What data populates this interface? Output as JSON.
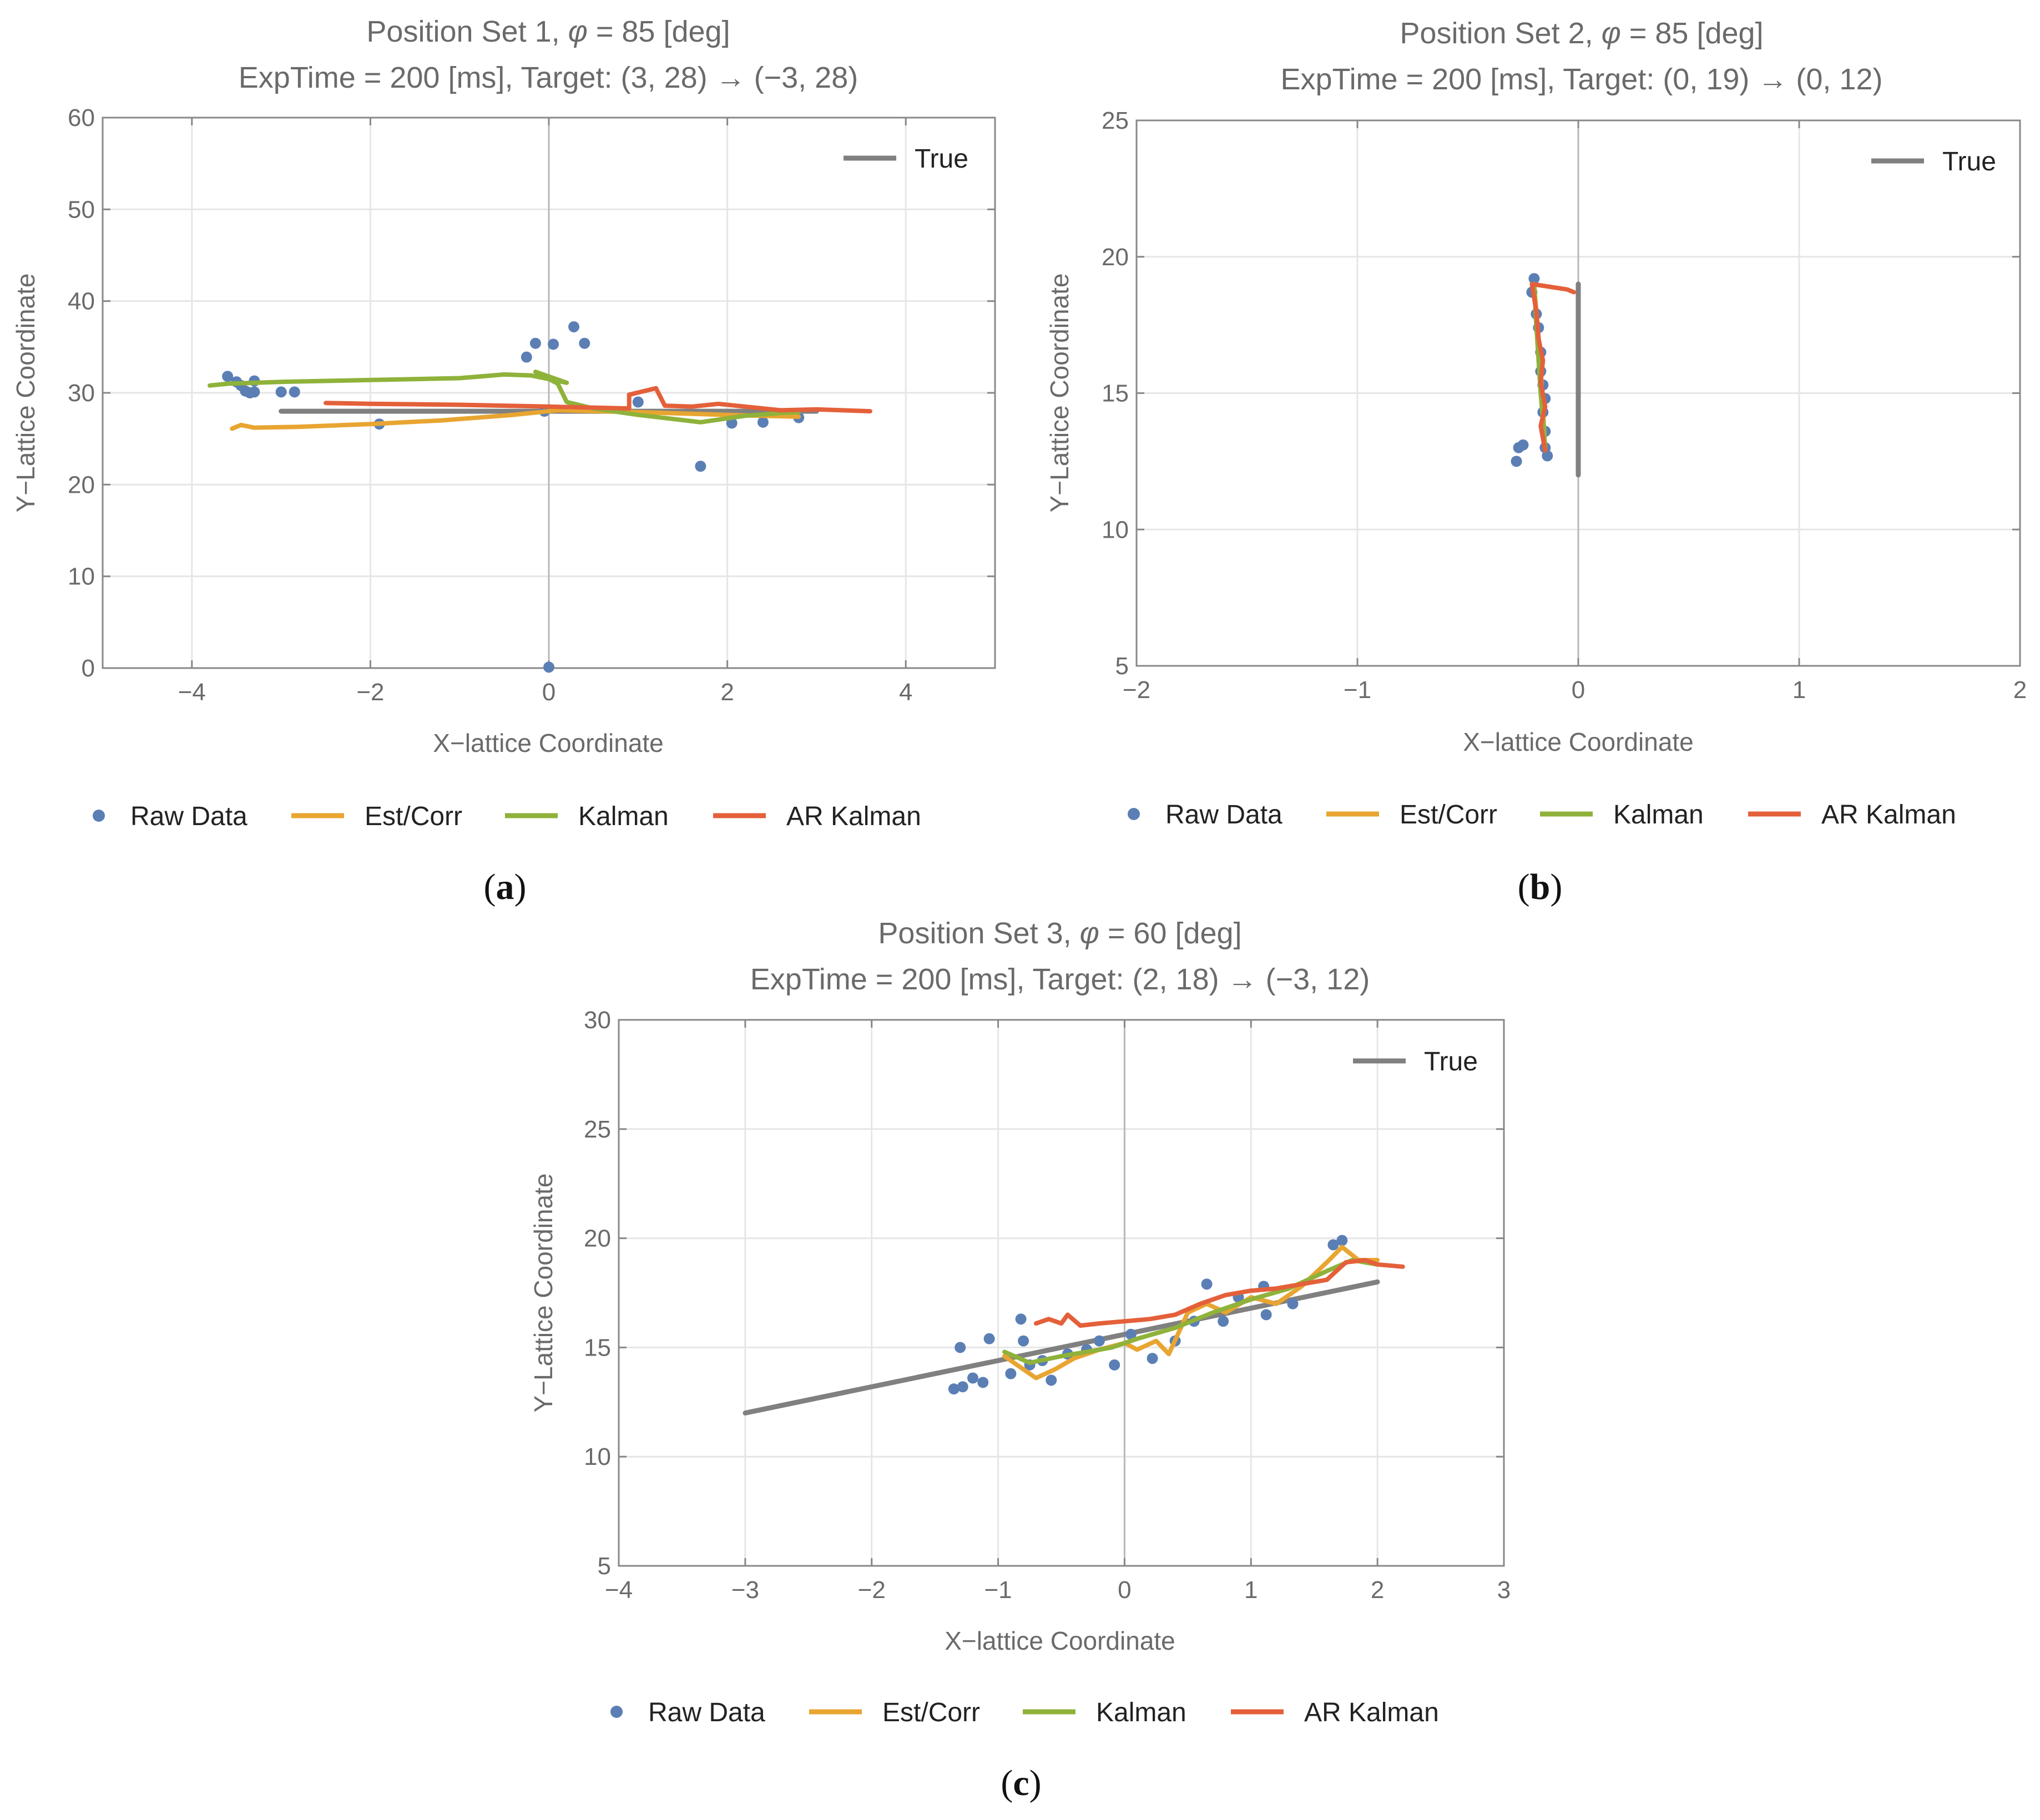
{
  "colors": {
    "raw": "#5b7fb5",
    "est": "#e8a531",
    "kalman": "#8fb23a",
    "ar": "#e4603a",
    "true": "#808080",
    "axis": "#888888",
    "grid": "#e6e6e6"
  },
  "legend_labels": [
    "Raw Data",
    "Est/Corr",
    "Kalman",
    "AR Kalman"
  ],
  "chart_data": [
    {
      "type": "scatter",
      "panel": "(a)",
      "title_line1_pre": "Position Set 1, ",
      "title_phi": "φ",
      "title_line1_post": " = 85 [deg]",
      "title_line2": "ExpTime = 200 [ms], Target: (3, 28) → (−3, 28)",
      "xlabel": "X−lattice Coordinate",
      "ylabel": "Y−Lattice Coordinate",
      "xlim": [
        -5,
        5
      ],
      "ylim": [
        0,
        60
      ],
      "xticks": [
        -4,
        -2,
        0,
        2,
        4
      ],
      "xtick_labels": [
        "−4",
        "−2",
        "0",
        "2",
        "4"
      ],
      "yticks": [
        0,
        10,
        20,
        30,
        40,
        50,
        60
      ],
      "ytick_labels": [
        "0",
        "10",
        "20",
        "30",
        "40",
        "50",
        "60"
      ],
      "inset_legend": "True",
      "series": [
        {
          "name": "True",
          "key": "true",
          "kind": "line",
          "points": [
            [
              -3,
              28
            ],
            [
              3,
              28
            ]
          ]
        },
        {
          "name": "Raw Data",
          "key": "raw",
          "kind": "points",
          "points": [
            [
              -3.6,
              31.8
            ],
            [
              -3.5,
              31.2
            ],
            [
              -3.45,
              30.8
            ],
            [
              -3.4,
              30.2
            ],
            [
              -3.35,
              30.0
            ],
            [
              -3.3,
              31.3
            ],
            [
              -3.3,
              30.1
            ],
            [
              -3.0,
              30.1
            ],
            [
              -2.85,
              30.1
            ],
            [
              -1.9,
              26.6
            ],
            [
              -0.25,
              33.9
            ],
            [
              -0.15,
              35.4
            ],
            [
              -0.05,
              28.0
            ],
            [
              0.0,
              0.1
            ],
            [
              0.05,
              35.3
            ],
            [
              0.28,
              37.2
            ],
            [
              0.4,
              35.4
            ],
            [
              1.0,
              29.0
            ],
            [
              1.7,
              22.0
            ],
            [
              2.05,
              26.7
            ],
            [
              2.4,
              26.8
            ],
            [
              2.8,
              27.3
            ]
          ]
        },
        {
          "name": "Est/Corr",
          "key": "est",
          "kind": "line",
          "points": [
            [
              -3.55,
              26.1
            ],
            [
              -3.45,
              26.5
            ],
            [
              -3.3,
              26.2
            ],
            [
              -2.8,
              26.3
            ],
            [
              -2.0,
              26.6
            ],
            [
              -1.2,
              27.0
            ],
            [
              -0.4,
              27.6
            ],
            [
              0.1,
              28.1
            ],
            [
              1.0,
              27.9
            ],
            [
              2.0,
              27.6
            ],
            [
              2.8,
              27.4
            ]
          ]
        },
        {
          "name": "Kalman",
          "key": "kalman",
          "kind": "line",
          "points": [
            [
              -3.8,
              30.8
            ],
            [
              -3.6,
              31.0
            ],
            [
              -3.0,
              31.2
            ],
            [
              -1.0,
              31.6
            ],
            [
              -0.5,
              32.0
            ],
            [
              -0.2,
              31.9
            ],
            [
              0.0,
              31.5
            ],
            [
              0.2,
              31.1
            ],
            [
              -0.15,
              32.3
            ],
            [
              0.1,
              31.0
            ],
            [
              0.2,
              29.0
            ],
            [
              0.5,
              28.3
            ],
            [
              1.0,
              27.6
            ],
            [
              1.7,
              26.8
            ],
            [
              2.2,
              27.5
            ],
            [
              2.6,
              27.8
            ],
            [
              2.8,
              27.9
            ]
          ]
        },
        {
          "name": "AR Kalman",
          "key": "ar",
          "kind": "line",
          "points": [
            [
              -2.5,
              28.9
            ],
            [
              -2.0,
              28.8
            ],
            [
              -1.0,
              28.7
            ],
            [
              0.0,
              28.5
            ],
            [
              0.9,
              28.3
            ],
            [
              0.9,
              29.8
            ],
            [
              1.2,
              30.5
            ],
            [
              1.3,
              28.6
            ],
            [
              1.6,
              28.5
            ],
            [
              1.9,
              28.8
            ],
            [
              2.2,
              28.5
            ],
            [
              2.6,
              28.1
            ],
            [
              3.0,
              28.2
            ],
            [
              3.6,
              28.0
            ]
          ]
        }
      ]
    },
    {
      "type": "scatter",
      "panel": "(b)",
      "title_line1_pre": "Position Set 2, ",
      "title_phi": "φ",
      "title_line1_post": " = 85 [deg]",
      "title_line2": "ExpTime = 200 [ms], Target: (0, 19) → (0, 12)",
      "xlabel": "X−lattice Coordinate",
      "ylabel": "Y−Lattice Coordinate",
      "xlim": [
        -2,
        2
      ],
      "ylim": [
        5,
        25
      ],
      "xticks": [
        -2,
        -1,
        0,
        1,
        2
      ],
      "xtick_labels": [
        "−2",
        "−1",
        "0",
        "1",
        "2"
      ],
      "yticks": [
        5,
        10,
        15,
        20,
        25
      ],
      "ytick_labels": [
        "5",
        "10",
        "15",
        "20",
        "25"
      ],
      "inset_legend": "True",
      "series": [
        {
          "name": "True",
          "key": "true",
          "kind": "line",
          "points": [
            [
              0,
              19
            ],
            [
              0,
              12
            ]
          ]
        },
        {
          "name": "Raw Data",
          "key": "raw",
          "kind": "points",
          "points": [
            [
              -0.28,
              12.5
            ],
            [
              -0.27,
              13.0
            ],
            [
              -0.25,
              13.1
            ],
            [
              -0.2,
              19.2
            ],
            [
              -0.21,
              18.7
            ],
            [
              -0.19,
              17.9
            ],
            [
              -0.18,
              17.4
            ],
            [
              -0.17,
              16.5
            ],
            [
              -0.17,
              15.8
            ],
            [
              -0.16,
              15.3
            ],
            [
              -0.15,
              14.8
            ],
            [
              -0.16,
              14.3
            ],
            [
              -0.15,
              13.6
            ],
            [
              -0.15,
              13.0
            ],
            [
              -0.14,
              12.7
            ]
          ]
        },
        {
          "name": "Est/Corr",
          "key": "est",
          "kind": "line",
          "points": [
            [
              -0.15,
              12.9
            ],
            [
              -0.16,
              14.5
            ],
            [
              -0.18,
              17.0
            ],
            [
              -0.2,
              19.0
            ]
          ]
        },
        {
          "name": "Kalman",
          "key": "kalman",
          "kind": "line",
          "points": [
            [
              -0.15,
              13.0
            ],
            [
              -0.17,
              15.0
            ],
            [
              -0.19,
              17.5
            ],
            [
              -0.2,
              19.0
            ]
          ]
        },
        {
          "name": "AR Kalman",
          "key": "ar",
          "kind": "line",
          "points": [
            [
              -0.15,
              12.9
            ],
            [
              -0.17,
              13.8
            ],
            [
              -0.15,
              14.5
            ],
            [
              -0.17,
              15.4
            ],
            [
              -0.16,
              16.2
            ],
            [
              -0.18,
              17.0
            ],
            [
              -0.19,
              18.0
            ],
            [
              -0.21,
              19.0
            ],
            [
              -0.05,
              18.8
            ],
            [
              -0.02,
              18.7
            ]
          ]
        }
      ]
    },
    {
      "type": "scatter",
      "panel": "(c)",
      "title_line1_pre": "Position Set 3, ",
      "title_phi": "φ",
      "title_line1_post": " = 60 [deg]",
      "title_line2": "ExpTime = 200 [ms], Target: (2, 18) → (−3, 12)",
      "xlabel": "X−lattice Coordinate",
      "ylabel": "Y−Lattice Coordinate",
      "xlim": [
        -4,
        3
      ],
      "ylim": [
        5,
        30
      ],
      "xticks": [
        -4,
        -3,
        -2,
        -1,
        0,
        1,
        2,
        3
      ],
      "xtick_labels": [
        "−4",
        "−3",
        "−2",
        "−1",
        "0",
        "1",
        "2",
        "3"
      ],
      "yticks": [
        5,
        10,
        15,
        20,
        25,
        30
      ],
      "ytick_labels": [
        "5",
        "10",
        "15",
        "20",
        "25",
        "30"
      ],
      "inset_legend": "True",
      "series": [
        {
          "name": "True",
          "key": "true",
          "kind": "line",
          "points": [
            [
              -3,
              12
            ],
            [
              2,
              18
            ]
          ]
        },
        {
          "name": "Raw Data",
          "key": "raw",
          "kind": "points",
          "points": [
            [
              -1.35,
              13.1
            ],
            [
              -1.3,
              15.0
            ],
            [
              -1.28,
              13.2
            ],
            [
              -1.2,
              13.6
            ],
            [
              -1.12,
              13.4
            ],
            [
              -1.07,
              15.4
            ],
            [
              -0.9,
              13.8
            ],
            [
              -0.82,
              16.3
            ],
            [
              -0.8,
              15.3
            ],
            [
              -0.75,
              14.2
            ],
            [
              -0.65,
              14.4
            ],
            [
              -0.58,
              13.5
            ],
            [
              -0.45,
              14.7
            ],
            [
              -0.3,
              14.9
            ],
            [
              -0.2,
              15.3
            ],
            [
              -0.08,
              14.2
            ],
            [
              0.05,
              15.6
            ],
            [
              0.22,
              14.5
            ],
            [
              0.4,
              15.3
            ],
            [
              0.55,
              16.2
            ],
            [
              0.65,
              17.9
            ],
            [
              0.78,
              16.2
            ],
            [
              0.9,
              17.3
            ],
            [
              1.1,
              17.8
            ],
            [
              1.12,
              16.5
            ],
            [
              1.33,
              17.0
            ],
            [
              1.65,
              19.7
            ],
            [
              1.72,
              19.9
            ]
          ]
        },
        {
          "name": "Est/Corr",
          "key": "est",
          "kind": "line",
          "points": [
            [
              -0.95,
              14.6
            ],
            [
              -0.85,
              14.2
            ],
            [
              -0.7,
              13.6
            ],
            [
              -0.55,
              14.0
            ],
            [
              -0.4,
              14.5
            ],
            [
              -0.2,
              14.9
            ],
            [
              0.0,
              15.2
            ],
            [
              0.1,
              14.9
            ],
            [
              0.25,
              15.3
            ],
            [
              0.35,
              14.7
            ],
            [
              0.5,
              16.6
            ],
            [
              0.65,
              17.0
            ],
            [
              0.8,
              16.6
            ],
            [
              1.0,
              17.3
            ],
            [
              1.2,
              17.0
            ],
            [
              1.4,
              17.8
            ],
            [
              1.6,
              18.9
            ],
            [
              1.72,
              19.6
            ],
            [
              1.85,
              19.0
            ],
            [
              2.0,
              19.0
            ]
          ]
        },
        {
          "name": "Kalman",
          "key": "kalman",
          "kind": "line",
          "points": [
            [
              -0.95,
              14.8
            ],
            [
              -0.75,
              14.3
            ],
            [
              -0.5,
              14.6
            ],
            [
              -0.3,
              14.8
            ],
            [
              -0.1,
              15.0
            ],
            [
              0.1,
              15.4
            ],
            [
              0.4,
              15.9
            ],
            [
              0.7,
              16.6
            ],
            [
              1.0,
              17.2
            ],
            [
              1.3,
              17.7
            ],
            [
              1.6,
              18.5
            ],
            [
              1.8,
              19.0
            ],
            [
              2.0,
              18.8
            ]
          ]
        },
        {
          "name": "AR Kalman",
          "key": "ar",
          "kind": "line",
          "points": [
            [
              -0.7,
              16.1
            ],
            [
              -0.6,
              16.3
            ],
            [
              -0.5,
              16.1
            ],
            [
              -0.45,
              16.5
            ],
            [
              -0.35,
              16.0
            ],
            [
              -0.2,
              16.1
            ],
            [
              0.0,
              16.2
            ],
            [
              0.2,
              16.3
            ],
            [
              0.4,
              16.5
            ],
            [
              0.6,
              17.0
            ],
            [
              0.8,
              17.4
            ],
            [
              1.0,
              17.6
            ],
            [
              1.2,
              17.7
            ],
            [
              1.4,
              17.9
            ],
            [
              1.6,
              18.1
            ],
            [
              1.75,
              18.9
            ],
            [
              1.9,
              19.0
            ],
            [
              2.0,
              18.8
            ],
            [
              2.2,
              18.7
            ]
          ]
        }
      ]
    }
  ]
}
